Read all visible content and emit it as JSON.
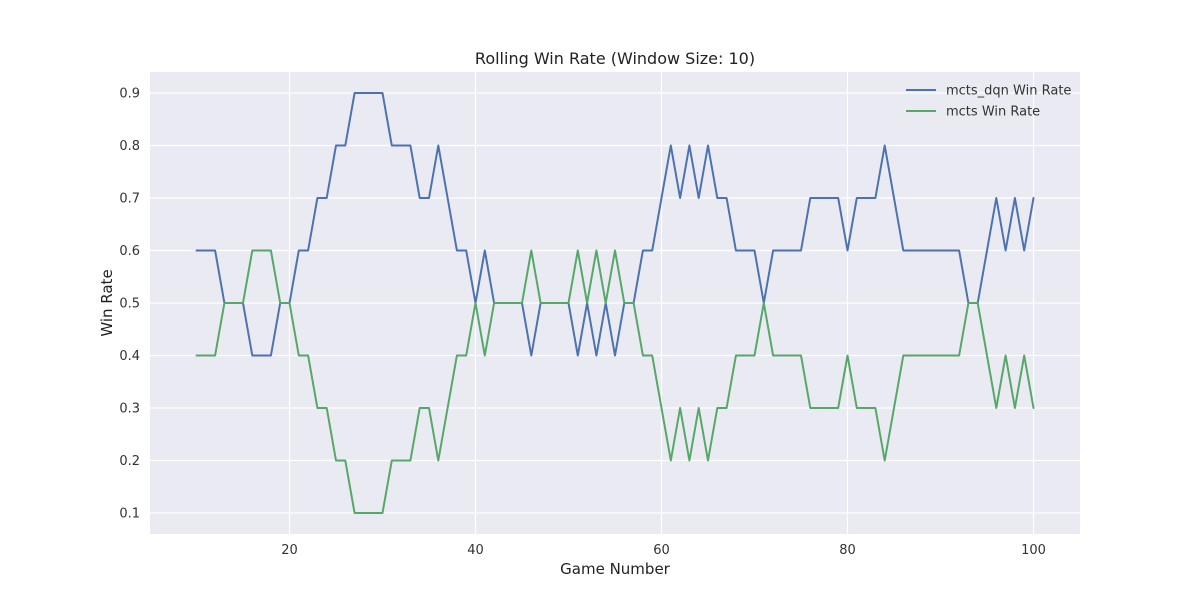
{
  "chart_data": {
    "type": "line",
    "title": "Rolling Win Rate (Window Size: 10)",
    "xlabel": "Game Number",
    "ylabel": "Win Rate",
    "xlim": [
      5,
      105
    ],
    "ylim": [
      0.06,
      0.94
    ],
    "xticks": [
      20,
      40,
      60,
      80,
      100
    ],
    "yticks": [
      0.1,
      0.2,
      0.3,
      0.4,
      0.5,
      0.6,
      0.7,
      0.8,
      0.9
    ],
    "grid": true,
    "legend_position": "top-right",
    "background": "#eaeaf2",
    "x": [
      10,
      11,
      12,
      13,
      14,
      15,
      16,
      17,
      18,
      19,
      20,
      21,
      22,
      23,
      24,
      25,
      26,
      27,
      28,
      29,
      30,
      31,
      32,
      33,
      34,
      35,
      36,
      37,
      38,
      39,
      40,
      41,
      42,
      43,
      44,
      45,
      46,
      47,
      48,
      49,
      50,
      51,
      52,
      53,
      54,
      55,
      56,
      57,
      58,
      59,
      60,
      61,
      62,
      63,
      64,
      65,
      66,
      67,
      68,
      69,
      70,
      71,
      72,
      73,
      74,
      75,
      76,
      77,
      78,
      79,
      80,
      81,
      82,
      83,
      84,
      85,
      86,
      87,
      88,
      89,
      90,
      91,
      92,
      93,
      94,
      95,
      96,
      97,
      98,
      99,
      100
    ],
    "series": [
      {
        "name": "mcts_dqn Win Rate",
        "color": "#4c72b0",
        "values": [
          0.6,
          0.6,
          0.6,
          0.5,
          0.5,
          0.5,
          0.4,
          0.4,
          0.4,
          0.5,
          0.5,
          0.6,
          0.6,
          0.7,
          0.7,
          0.8,
          0.8,
          0.9,
          0.9,
          0.9,
          0.9,
          0.8,
          0.8,
          0.8,
          0.7,
          0.7,
          0.8,
          0.7,
          0.6,
          0.6,
          0.5,
          0.6,
          0.5,
          0.5,
          0.5,
          0.5,
          0.4,
          0.5,
          0.5,
          0.5,
          0.5,
          0.4,
          0.5,
          0.4,
          0.5,
          0.4,
          0.5,
          0.5,
          0.6,
          0.6,
          0.7,
          0.8,
          0.7,
          0.8,
          0.7,
          0.8,
          0.7,
          0.7,
          0.6,
          0.6,
          0.6,
          0.5,
          0.6,
          0.6,
          0.6,
          0.6,
          0.7,
          0.7,
          0.7,
          0.7,
          0.6,
          0.7,
          0.7,
          0.7,
          0.8,
          0.7,
          0.6,
          0.6,
          0.6,
          0.6,
          0.6,
          0.6,
          0.6,
          0.5,
          0.5,
          0.6,
          0.7,
          0.6,
          0.7,
          0.6,
          0.7
        ]
      },
      {
        "name": "mcts Win Rate",
        "color": "#55a868",
        "values": [
          0.4,
          0.4,
          0.4,
          0.5,
          0.5,
          0.5,
          0.6,
          0.6,
          0.6,
          0.5,
          0.5,
          0.4,
          0.4,
          0.3,
          0.3,
          0.2,
          0.2,
          0.1,
          0.1,
          0.1,
          0.1,
          0.2,
          0.2,
          0.2,
          0.3,
          0.3,
          0.2,
          0.3,
          0.4,
          0.4,
          0.5,
          0.4,
          0.5,
          0.5,
          0.5,
          0.5,
          0.6,
          0.5,
          0.5,
          0.5,
          0.5,
          0.6,
          0.5,
          0.6,
          0.5,
          0.6,
          0.5,
          0.5,
          0.4,
          0.4,
          0.3,
          0.2,
          0.3,
          0.2,
          0.3,
          0.2,
          0.3,
          0.3,
          0.4,
          0.4,
          0.4,
          0.5,
          0.4,
          0.4,
          0.4,
          0.4,
          0.3,
          0.3,
          0.3,
          0.3,
          0.4,
          0.3,
          0.3,
          0.3,
          0.2,
          0.3,
          0.4,
          0.4,
          0.4,
          0.4,
          0.4,
          0.4,
          0.4,
          0.5,
          0.5,
          0.4,
          0.3,
          0.4,
          0.3,
          0.4,
          0.3
        ]
      }
    ]
  }
}
